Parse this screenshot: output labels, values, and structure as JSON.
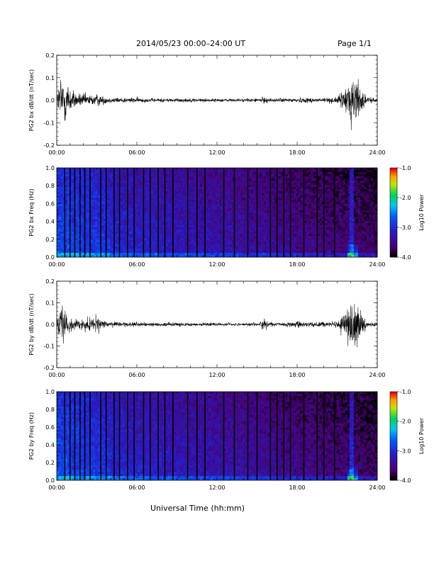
{
  "header": {
    "title": "2014/05/23  00:00–24:00 UT",
    "page": "Page 1/1"
  },
  "xaxis": {
    "label": "Universal Time (hh:mm)",
    "ticks": [
      "00:00",
      "06:00",
      "12:00",
      "18:00",
      "24:00"
    ],
    "range_hours": [
      0,
      24
    ]
  },
  "colorbar": {
    "label": "Log10 Power",
    "ticks": [
      "-1.0",
      "-2.0",
      "-3.0",
      "-4.0"
    ],
    "range": [
      -4.0,
      -1.0
    ]
  },
  "chart_data": [
    {
      "type": "line",
      "id": "bx-wave",
      "ylabel": "PG2 bx dB/dt (nT/sec)",
      "ylim": [
        -0.2,
        0.2
      ],
      "yticks": [
        "0.2",
        "0.1",
        "0.0",
        "-0.1",
        "-0.2"
      ],
      "x_unit": "hours UT",
      "envelope": {
        "x": [
          0,
          0.3,
          0.6,
          1.0,
          1.5,
          2.0,
          2.5,
          3.0,
          3.5,
          4.0,
          5.0,
          6.0,
          7.0,
          8.0,
          10.0,
          12.0,
          14.0,
          15.0,
          15.5,
          16.0,
          17.0,
          18.0,
          19.0,
          20.0,
          21.0,
          21.7,
          22.0,
          22.4,
          22.8,
          23.2,
          24.0
        ],
        "amplitude": [
          0.04,
          0.2,
          0.2,
          0.1,
          0.05,
          0.05,
          0.04,
          0.05,
          0.03,
          0.02,
          0.02,
          0.02,
          0.015,
          0.015,
          0.015,
          0.012,
          0.012,
          0.015,
          0.025,
          0.015,
          0.015,
          0.02,
          0.02,
          0.02,
          0.025,
          0.1,
          0.2,
          0.2,
          0.1,
          0.02,
          0.015
        ]
      }
    },
    {
      "type": "heatmap",
      "id": "bx-spec",
      "ylabel": "PG2 bx Freq (Hz)",
      "ylim": [
        0.0,
        1.0
      ],
      "yticks": [
        "1.0",
        "0.8",
        "0.6",
        "0.4",
        "0.2",
        "0.0"
      ],
      "z_label": "Log10 Power",
      "zlim": [
        -4.0,
        -1.0
      ],
      "gap_lines_hours": [
        0.6,
        1.0,
        1.35,
        1.75,
        2.1,
        2.5,
        3.3,
        3.7,
        4.3,
        4.7,
        5.3,
        5.8,
        6.5,
        7.0,
        7.6,
        8.1,
        8.7,
        9.8,
        10.5,
        11.1,
        12.5,
        13.3,
        14.3,
        15.0,
        16.0,
        16.5,
        17.0,
        17.5,
        18.5,
        19.5,
        20.0,
        20.8
      ]
    },
    {
      "type": "line",
      "id": "by-wave",
      "ylabel": "PG2 by dB/dt (nT/sec)",
      "ylim": [
        -0.2,
        0.2
      ],
      "yticks": [
        "0.2",
        "0.1",
        "0.0",
        "-0.1",
        "-0.2"
      ],
      "x_unit": "hours UT",
      "envelope": {
        "x": [
          0,
          0.3,
          0.6,
          1.0,
          1.5,
          2.0,
          2.5,
          3.0,
          3.5,
          4.0,
          5.0,
          6.0,
          7.0,
          8.0,
          10.0,
          12.0,
          14.0,
          15.0,
          15.5,
          16.0,
          17.0,
          18.0,
          19.0,
          20.0,
          21.0,
          21.7,
          22.0,
          22.4,
          22.8,
          23.2,
          24.0
        ],
        "amplitude": [
          0.04,
          0.15,
          0.12,
          0.06,
          0.04,
          0.04,
          0.05,
          0.06,
          0.035,
          0.02,
          0.02,
          0.02,
          0.015,
          0.015,
          0.015,
          0.012,
          0.012,
          0.015,
          0.05,
          0.015,
          0.015,
          0.025,
          0.025,
          0.02,
          0.025,
          0.12,
          0.2,
          0.2,
          0.1,
          0.02,
          0.015
        ]
      }
    },
    {
      "type": "heatmap",
      "id": "by-spec",
      "ylabel": "PG2 by Freq (Hz)",
      "ylim": [
        0.0,
        1.0
      ],
      "yticks": [
        "1.0",
        "0.8",
        "0.6",
        "0.4",
        "0.2",
        "0.0"
      ],
      "z_label": "Log10 Power",
      "zlim": [
        -4.0,
        -1.0
      ],
      "gap_lines_hours": [
        0.6,
        1.0,
        1.35,
        1.75,
        2.1,
        2.5,
        3.3,
        3.7,
        4.3,
        4.7,
        5.3,
        5.8,
        6.5,
        7.0,
        7.6,
        8.1,
        8.7,
        9.8,
        10.5,
        11.1,
        12.5,
        13.3,
        14.3,
        15.0,
        16.0,
        16.5,
        17.0,
        17.5,
        18.5,
        19.5,
        20.0,
        20.8
      ]
    }
  ]
}
